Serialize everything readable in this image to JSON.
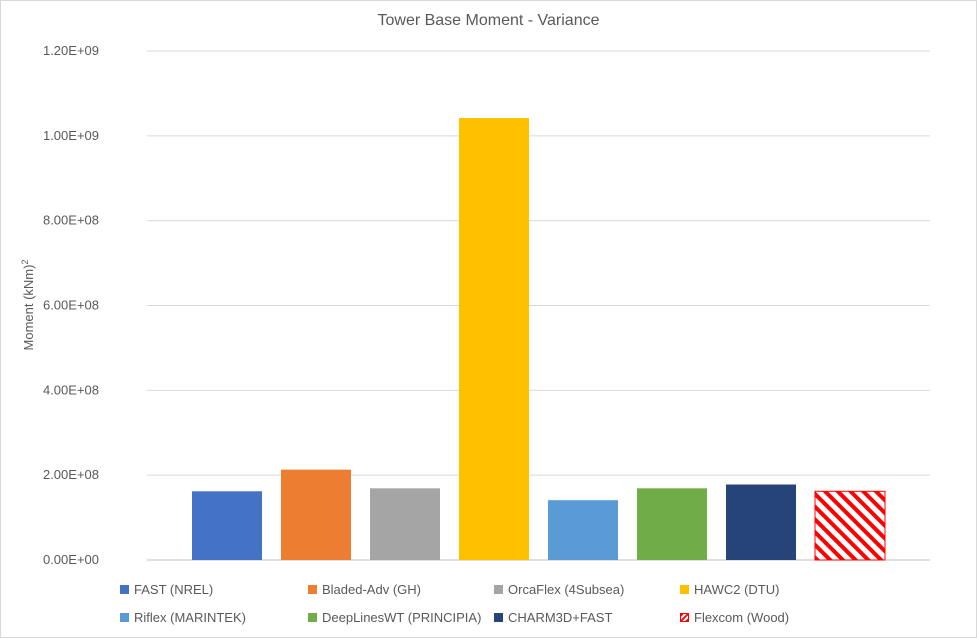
{
  "chart_data": {
    "type": "bar",
    "title": "Tower Base Moment - Variance",
    "ylabel_main": "Moment (kNm)",
    "ylabel_sup": "2",
    "ylim": [
      0,
      1200000000
    ],
    "yticks": [
      0,
      200000000,
      400000000,
      600000000,
      800000000,
      1000000000,
      1200000000
    ],
    "ytick_labels": [
      "0.00E+00",
      "2.00E+08",
      "4.00E+08",
      "6.00E+08",
      "8.00E+08",
      "1.00E+09",
      "1.20E+09"
    ],
    "grid": true,
    "legend_position": "bottom",
    "series": [
      {
        "name": "FAST (NREL)",
        "value": 162000000,
        "color": "#4472c4",
        "pattern": "solid"
      },
      {
        "name": "Bladed-Adv (GH)",
        "value": 213000000,
        "color": "#ed7d31",
        "pattern": "solid"
      },
      {
        "name": "OrcaFlex (4Subsea)",
        "value": 169000000,
        "color": "#a5a5a5",
        "pattern": "solid"
      },
      {
        "name": "HAWC2 (DTU)",
        "value": 1042000000,
        "color": "#ffc000",
        "pattern": "solid"
      },
      {
        "name": "Riflex (MARINTEK)",
        "value": 141000000,
        "color": "#5b9bd5",
        "pattern": "solid"
      },
      {
        "name": "DeepLinesWT (PRINCIPIA)",
        "value": 169000000,
        "color": "#70ad47",
        "pattern": "solid"
      },
      {
        "name": "CHARM3D+FAST",
        "value": 178000000,
        "color": "#264478",
        "pattern": "solid"
      },
      {
        "name": "Flexcom (Wood)",
        "value": 162000000,
        "color": "#ff0000",
        "pattern": "hatched"
      }
    ]
  }
}
